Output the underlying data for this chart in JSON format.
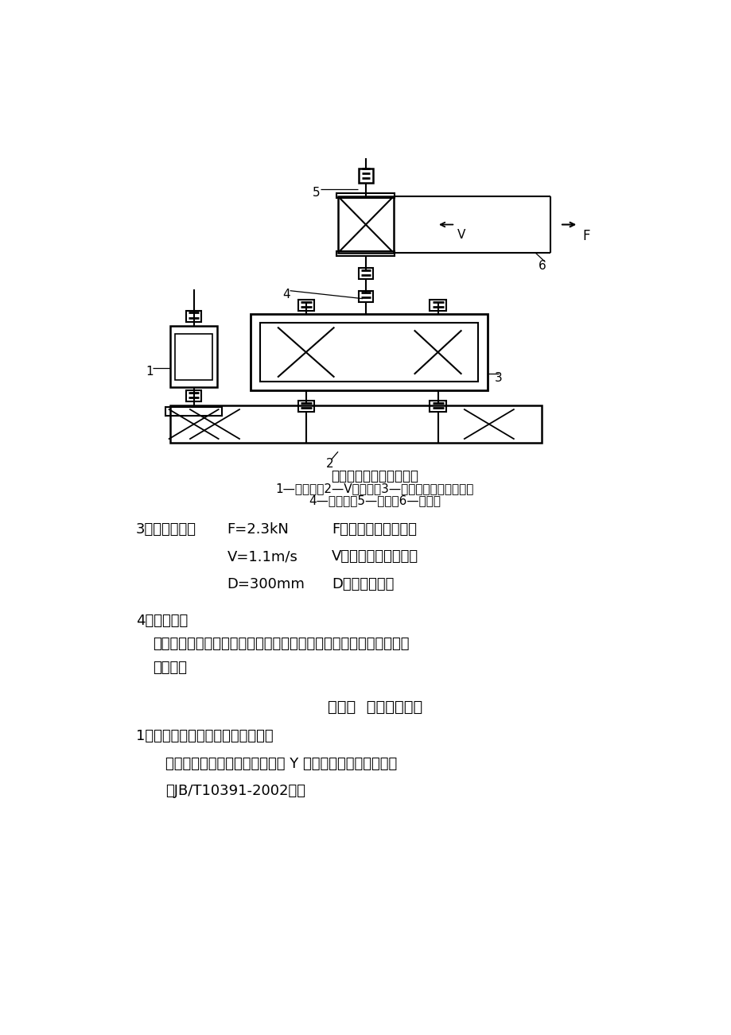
{
  "page_bg": "#ffffff",
  "title_diagram": "带式输送机传动系统简图",
  "caption_line1": "1—电动机；2—V带传动；3—单击圆柱齿轮减速器；",
  "caption_line2": "4—联轴器；5—滚筒；6—输送带",
  "section3_label": "3、原始数据：",
  "row1_left": "F=2.3kN",
  "row1_right": "F：输送带工作拉力；",
  "row2_left": "V=1.1m/s",
  "row2_right": "V：输送带工作速度；",
  "row3_left": "D=300mm",
  "row3_right": "D：滚筒直径。",
  "section4_label": "4、工作条件",
  "section4_text1": "连续单向运转，空载启动，工作时有轻微震动，工作年限８年，两班",
  "section4_text2": "制工作。",
  "chapter_title": "第三章  电动机的选择",
  "s1_title": "1、电动机类型和结构型式的选择：",
  "s1_para1": "按已知的工作要求和条件，选用 Y 系列三相交流异步电动机",
  "s1_para2": "（JB/T10391-2002）。"
}
